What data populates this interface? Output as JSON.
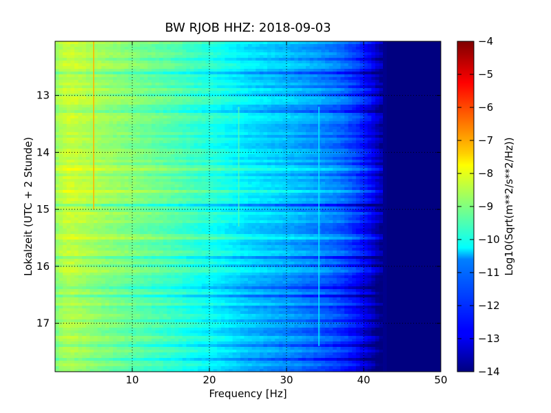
{
  "chart_data": {
    "type": "heatmap",
    "title": "BW RJOB HHZ: 2018-09-03",
    "xlabel": "Frequency [Hz]",
    "ylabel": "Lokalzeit (UTC + 2 Stunde)",
    "xlim": [
      0,
      50
    ],
    "ylim": [
      17.85,
      12.05
    ],
    "x_ticks": [
      10,
      20,
      30,
      40,
      50
    ],
    "x_tick_labels": [
      "10",
      "20",
      "30",
      "40",
      "50"
    ],
    "y_ticks": [
      13,
      14,
      15,
      16,
      17
    ],
    "y_tick_labels": [
      "13",
      "14",
      "15",
      "16",
      "17"
    ],
    "grid": true,
    "colormap": "jet",
    "colorbar": {
      "label": "Log10(Sqrt(m**2/s**2/Hz))",
      "vmin": -14,
      "vmax": -4,
      "ticks": [
        -4,
        -5,
        -6,
        -7,
        -8,
        -9,
        -10,
        -11,
        -12,
        -13,
        -14
      ],
      "tick_labels": [
        "−4",
        "−5",
        "−6",
        "−7",
        "−8",
        "−9",
        "−10",
        "−11",
        "−12",
        "−13",
        "−14"
      ]
    },
    "spectral_profile": {
      "frequency_hz": [
        0,
        1,
        2,
        4,
        6,
        10,
        15,
        20,
        25,
        30,
        34,
        37,
        39,
        41,
        42,
        43,
        50
      ],
      "log_amplitude": [
        -8.8,
        -8.4,
        -8.3,
        -8.5,
        -8.7,
        -9.0,
        -9.4,
        -9.9,
        -10.5,
        -10.9,
        -11.3,
        -11.7,
        -12.2,
        -12.9,
        -13.5,
        -14.0,
        -14.0
      ]
    },
    "spectral_lines_hz": [
      5.0,
      23.8,
      34.2
    ]
  }
}
